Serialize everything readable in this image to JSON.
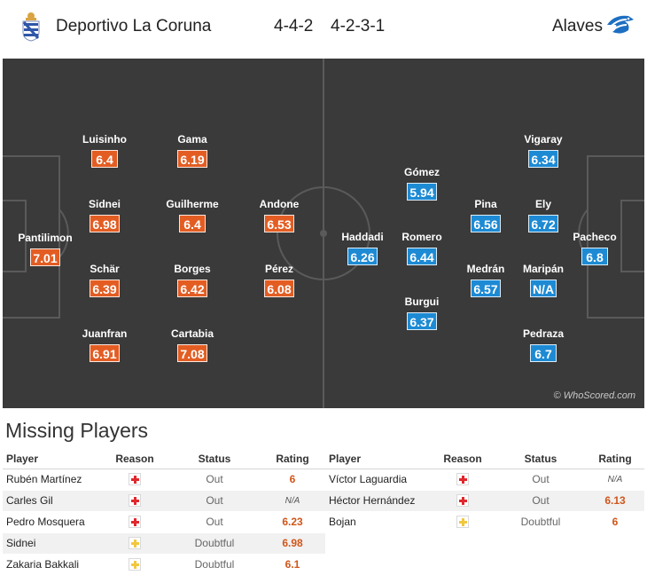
{
  "header": {
    "home_team": "Deportivo La Coruna",
    "home_formation": "4-4-2",
    "away_formation": "4-2-3-1",
    "away_team": "Alaves",
    "home_crest_icon": "deportivo-crest-icon",
    "away_crest_icon": "alaves-crest-icon"
  },
  "colors": {
    "pitch": "#3a3a3a",
    "home_rating": "#e35d23",
    "away_rating": "#1d8ad4",
    "injury": "#e0282d",
    "doubtful": "#f2c73f"
  },
  "home_players": [
    {
      "name": "Pantilimon",
      "rating": "7.01"
    },
    {
      "name": "Luisinho",
      "rating": "6.4"
    },
    {
      "name": "Sidnei",
      "rating": "6.98"
    },
    {
      "name": "Schär",
      "rating": "6.39"
    },
    {
      "name": "Juanfran",
      "rating": "6.91"
    },
    {
      "name": "Gama",
      "rating": "6.19"
    },
    {
      "name": "Guilherme",
      "rating": "6.4"
    },
    {
      "name": "Borges",
      "rating": "6.42"
    },
    {
      "name": "Cartabia",
      "rating": "7.08"
    },
    {
      "name": "Andone",
      "rating": "6.53"
    },
    {
      "name": "Pérez",
      "rating": "6.08"
    }
  ],
  "away_players": [
    {
      "name": "Haddadi",
      "rating": "6.26"
    },
    {
      "name": "Gómez",
      "rating": "5.94"
    },
    {
      "name": "Romero",
      "rating": "6.44"
    },
    {
      "name": "Burgui",
      "rating": "6.37"
    },
    {
      "name": "Pina",
      "rating": "6.56"
    },
    {
      "name": "Medrán",
      "rating": "6.57"
    },
    {
      "name": "Vigaray",
      "rating": "6.34"
    },
    {
      "name": "Ely",
      "rating": "6.72"
    },
    {
      "name": "Maripán",
      "rating": "N/A"
    },
    {
      "name": "Pedraza",
      "rating": "6.7"
    },
    {
      "name": "Pacheco",
      "rating": "6.8"
    }
  ],
  "watermark": "© WhoScored.com",
  "missing": {
    "title": "Missing Players",
    "columns": {
      "player": "Player",
      "reason": "Reason",
      "status": "Status",
      "rating": "Rating"
    },
    "home": [
      {
        "player": "Rubén Martínez",
        "reason": "injury",
        "status": "Out",
        "rating": "6"
      },
      {
        "player": "Carles Gil",
        "reason": "injury",
        "status": "Out",
        "rating": "N/A"
      },
      {
        "player": "Pedro Mosquera",
        "reason": "injury",
        "status": "Out",
        "rating": "6.23"
      },
      {
        "player": "Sidnei",
        "reason": "doubt",
        "status": "Doubtful",
        "rating": "6.98"
      },
      {
        "player": "Zakaria Bakkali",
        "reason": "doubt",
        "status": "Doubtful",
        "rating": "6.1"
      }
    ],
    "away": [
      {
        "player": "Víctor Laguardia",
        "reason": "injury",
        "status": "Out",
        "rating": "N/A"
      },
      {
        "player": "Héctor Hernández",
        "reason": "injury",
        "status": "Out",
        "rating": "6.13"
      },
      {
        "player": "Bojan",
        "reason": "doubt",
        "status": "Doubtful",
        "rating": "6"
      }
    ]
  }
}
